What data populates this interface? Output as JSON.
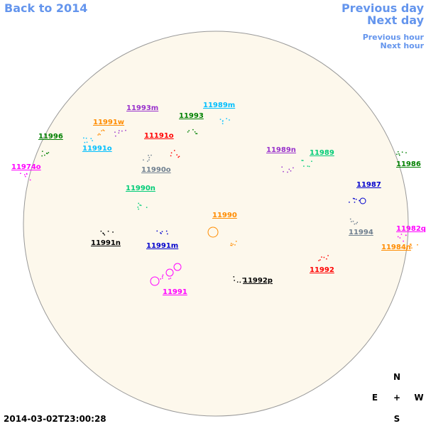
{
  "header": {
    "back": "Back to 2014",
    "previous_day": "Previous day",
    "next_day": "Next day",
    "previous_hour": "Previous hour",
    "next_hour": "Next hour"
  },
  "regions": [
    {
      "label": "11996",
      "color": "#008000"
    },
    {
      "label": "11974o",
      "color": "#ff00ff"
    },
    {
      "label": "11993m",
      "color": "#9932cc"
    },
    {
      "label": "11991w",
      "color": "#ff8c00"
    },
    {
      "label": "11993",
      "color": "#008000"
    },
    {
      "label": "11989m",
      "color": "#00bfff"
    },
    {
      "label": "11191o",
      "color": "#ff0000"
    },
    {
      "label": "11991o",
      "color": "#00bfff"
    },
    {
      "label": "11989n",
      "color": "#9932cc"
    },
    {
      "label": "11989",
      "color": "#00cc77"
    },
    {
      "label": "11986",
      "color": "#008000"
    },
    {
      "label": "11990o",
      "color": "#708090"
    },
    {
      "label": "11990n",
      "color": "#00cc77"
    },
    {
      "label": "11987",
      "color": "#0000cd"
    },
    {
      "label": "11990",
      "color": "#ff8c00"
    },
    {
      "label": "11994",
      "color": "#708090"
    },
    {
      "label": "11982q",
      "color": "#ff00ff"
    },
    {
      "label": "11991n",
      "color": "#000000"
    },
    {
      "label": "11991m",
      "color": "#0000cd"
    },
    {
      "label": "11984n",
      "color": "#ff8c00"
    },
    {
      "label": "11992",
      "color": "#ff0000"
    },
    {
      "label": "11992p",
      "color": "#000000"
    },
    {
      "label": "11991",
      "color": "#ff00ff"
    }
  ],
  "compass": {
    "north": "N",
    "east": "E",
    "center": "+",
    "west": "W",
    "south": "S"
  },
  "timestamp": "2014-03-02T23:00:28"
}
